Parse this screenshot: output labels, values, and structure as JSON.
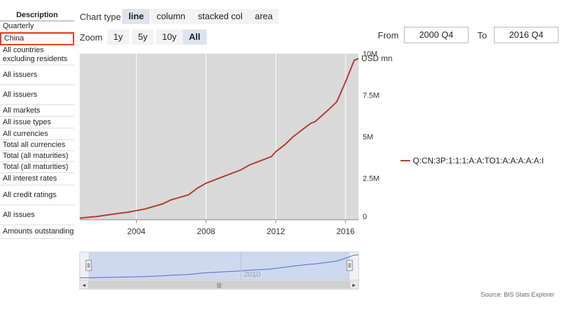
{
  "sidebar": {
    "header": "Description",
    "items": [
      {
        "label": "Quarterly"
      },
      {
        "label": "China",
        "selected": true
      },
      {
        "label": "All countries excluding residents"
      },
      {
        "label": "All issuers"
      },
      {
        "label": "All issuers"
      },
      {
        "label": "All markets"
      },
      {
        "label": "All issue types"
      },
      {
        "label": "All currencies"
      },
      {
        "label": "Total all currencies"
      },
      {
        "label": "Total (all maturities)"
      },
      {
        "label": "Total (all maturities)"
      },
      {
        "label": "All interest rates"
      },
      {
        "label": "All credit ratings"
      },
      {
        "label": "All issues"
      },
      {
        "label": "Amounts outstanding"
      }
    ]
  },
  "toolbar": {
    "chart_type_label": "Chart type",
    "chart_types": [
      {
        "label": "line",
        "active": true
      },
      {
        "label": "column"
      },
      {
        "label": "stacked col"
      },
      {
        "label": "area"
      }
    ],
    "zoom_label": "Zoom",
    "zoom_options": [
      {
        "label": "1y"
      },
      {
        "label": "5y"
      },
      {
        "label": "10y"
      },
      {
        "label": "All",
        "active": true
      }
    ],
    "from_label": "From",
    "from_value": "2000 Q4",
    "to_label": "To",
    "to_value": "2016 Q4"
  },
  "navigator": {
    "tick_label": "2010",
    "handle_glyph": "|||",
    "left_arrow": "◂",
    "right_arrow": "▸"
  },
  "source": "Source: BIS Stats Explorer",
  "colors": {
    "series": "#b33a2f",
    "plot_bg": "#d9d9d9",
    "selected_border": "#e0401c",
    "navigator_fill": "#c8d4ec",
    "navigator_line": "#4a6fc2"
  },
  "chart_data": {
    "type": "line",
    "ylabel": "USD mn",
    "xlim": [
      2000.75,
      2016.75
    ],
    "ylim": [
      0,
      10000000
    ],
    "x_ticks": [
      2004,
      2008,
      2012,
      2016
    ],
    "x_tick_labels": [
      "2004",
      "2008",
      "2012",
      "2016"
    ],
    "y_ticks": [
      0,
      2500000,
      5000000,
      7500000,
      10000000
    ],
    "y_tick_labels": [
      "0",
      "2.5M",
      "5M",
      "7.5M",
      "10M"
    ],
    "grid": true,
    "legend_position": "right",
    "series": [
      {
        "name": "Q:CN:3P:1:1:1:A:A:TO1:A:A:A:A:A:I",
        "x": [
          2000.75,
          2001.75,
          2002.75,
          2003.5,
          2004.5,
          2005.5,
          2006.0,
          2007.0,
          2007.5,
          2008.0,
          2009.0,
          2009.5,
          2010.0,
          2010.5,
          2011.0,
          2011.75,
          2012.0,
          2012.5,
          2013.0,
          2013.5,
          2014.0,
          2014.25,
          2015.0,
          2015.5,
          2016.0,
          2016.5,
          2016.75
        ],
        "y": [
          100000,
          200000,
          350000,
          450000,
          650000,
          950000,
          1200000,
          1500000,
          1900000,
          2200000,
          2600000,
          2800000,
          3000000,
          3300000,
          3500000,
          3800000,
          4100000,
          4500000,
          5000000,
          5400000,
          5800000,
          5900000,
          6600000,
          7100000,
          8300000,
          9600000,
          9700000
        ]
      }
    ]
  }
}
